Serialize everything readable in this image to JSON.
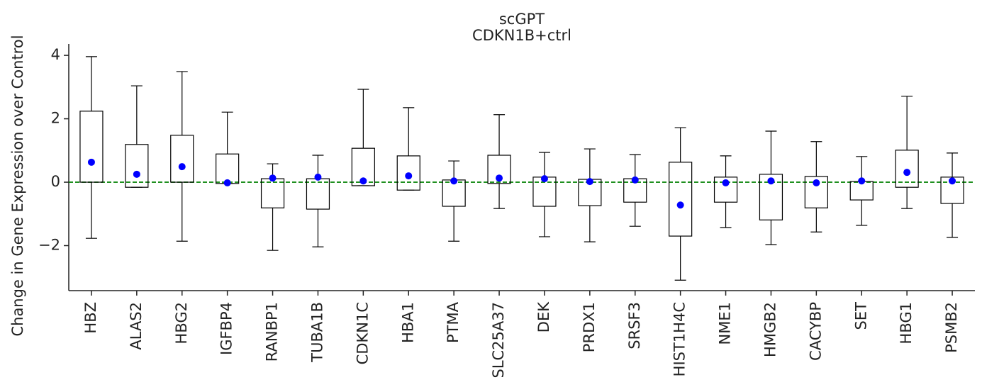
{
  "chart_data": {
    "type": "box",
    "title": "scGPT",
    "subtitle": "CDKN1B+ctrl",
    "ylabel": "Change in Gene Expression over Control",
    "categories": [
      "HBZ",
      "ALAS2",
      "HBG2",
      "IGFBP4",
      "RANBP1",
      "TUBA1B",
      "CDKN1C",
      "HBA1",
      "PTMA",
      "SLC25A37",
      "DEK",
      "PRDX1",
      "SRSF3",
      "HIST1H4C",
      "NME1",
      "HMGB2",
      "CACYBP",
      "SET",
      "HBG1",
      "PSMB2"
    ],
    "whishi": [
      3.96,
      3.04,
      3.49,
      2.21,
      0.58,
      0.85,
      2.93,
      2.35,
      0.67,
      2.13,
      0.94,
      1.05,
      0.87,
      1.72,
      0.83,
      1.61,
      1.28,
      0.81,
      2.71,
      0.92
    ],
    "q3": [
      2.24,
      1.19,
      1.48,
      0.89,
      0.11,
      0.11,
      1.07,
      0.83,
      0.07,
      0.85,
      0.16,
      0.09,
      0.11,
      0.63,
      0.16,
      0.25,
      0.18,
      0.02,
      1.01,
      0.16
    ],
    "q1": [
      0,
      -0.16,
      0,
      -0.04,
      -0.81,
      -0.85,
      -0.11,
      -0.25,
      -0.76,
      -0.04,
      -0.76,
      -0.74,
      -0.63,
      -1.7,
      -0.63,
      -1.19,
      -0.81,
      -0.56,
      -0.16,
      -0.67
    ],
    "whislo": [
      -1.77,
      -0.16,
      -1.86,
      -0.04,
      -2.15,
      -2.04,
      -0.11,
      -0.25,
      -1.86,
      -0.83,
      -1.72,
      -1.88,
      -1.39,
      -3.09,
      -1.43,
      -1.97,
      -1.57,
      -1.36,
      -0.83,
      -1.74
    ],
    "mean": [
      0.63,
      0.25,
      0.49,
      -0.02,
      0.13,
      0.16,
      0.04,
      0.2,
      0.04,
      0.13,
      0.11,
      0.02,
      0.07,
      -0.72,
      -0.02,
      0.04,
      -0.02,
      0.04,
      0.31,
      0.04
    ],
    "mean_color": "#0000ff",
    "box_color": "#000000",
    "hline": 0,
    "hline_color": "#008000",
    "ylim": [
      -3.42,
      4.36
    ],
    "yticks": [
      {
        "value": -2,
        "label": "−2"
      },
      0,
      2,
      4
    ]
  }
}
